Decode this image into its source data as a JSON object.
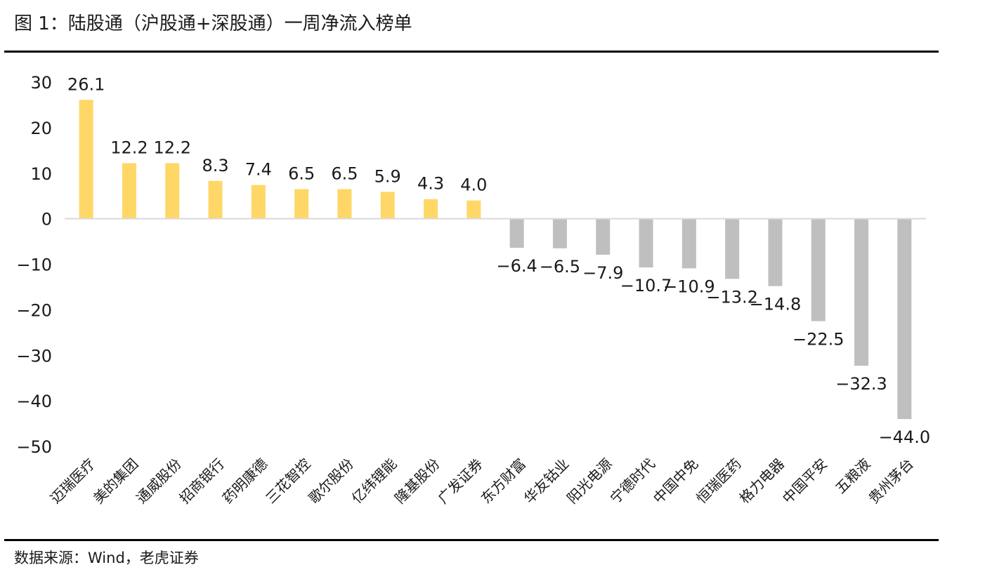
{
  "header": {
    "title": "图 1：陆股通（沪股通+深股通）一周净流入榜单"
  },
  "footer": {
    "source": "数据来源：Wind，老虎证券"
  },
  "colors": {
    "positive": "#FFD766",
    "negative": "#BFBFBF",
    "axis": "#D9D9D9",
    "text": "#1a1a1a"
  },
  "chart_data": {
    "type": "bar",
    "categories": [
      "迈瑞医疗",
      "美的集团",
      "通威股份",
      "招商银行",
      "药明康德",
      "三花智控",
      "歌尔股份",
      "亿纬锂能",
      "隆基股份",
      "广发证券",
      "东方财富",
      "华友钴业",
      "阳光电源",
      "宁德时代",
      "中国中免",
      "恒瑞医药",
      "格力电器",
      "中国平安",
      "五粮液",
      "贵州茅台"
    ],
    "values": [
      26.1,
      12.2,
      12.2,
      8.3,
      7.4,
      6.5,
      6.5,
      5.9,
      4.3,
      4.0,
      -6.4,
      -6.5,
      -7.9,
      -10.7,
      -10.9,
      -13.2,
      -14.8,
      -22.5,
      -32.3,
      -44.0
    ],
    "value_labels": [
      "26.1",
      "12.2",
      "12.2",
      "8.3",
      "7.4",
      "6.5",
      "6.5",
      "5.9",
      "4.3",
      "4.0",
      "−6.4",
      "−6.5",
      "−7.9",
      "−10.7",
      "−10.9",
      "−13.2",
      "−14.8",
      "−22.5",
      "−32.3",
      "−44.0"
    ],
    "yticks": [
      "30",
      "20",
      "10",
      "0",
      "−10",
      "−20",
      "−30",
      "−40",
      "−50"
    ],
    "ytick_values": [
      30,
      20,
      10,
      0,
      -10,
      -20,
      -30,
      -40,
      -50
    ],
    "ylim": [
      -50,
      30
    ],
    "grid": false,
    "legend": "none"
  }
}
